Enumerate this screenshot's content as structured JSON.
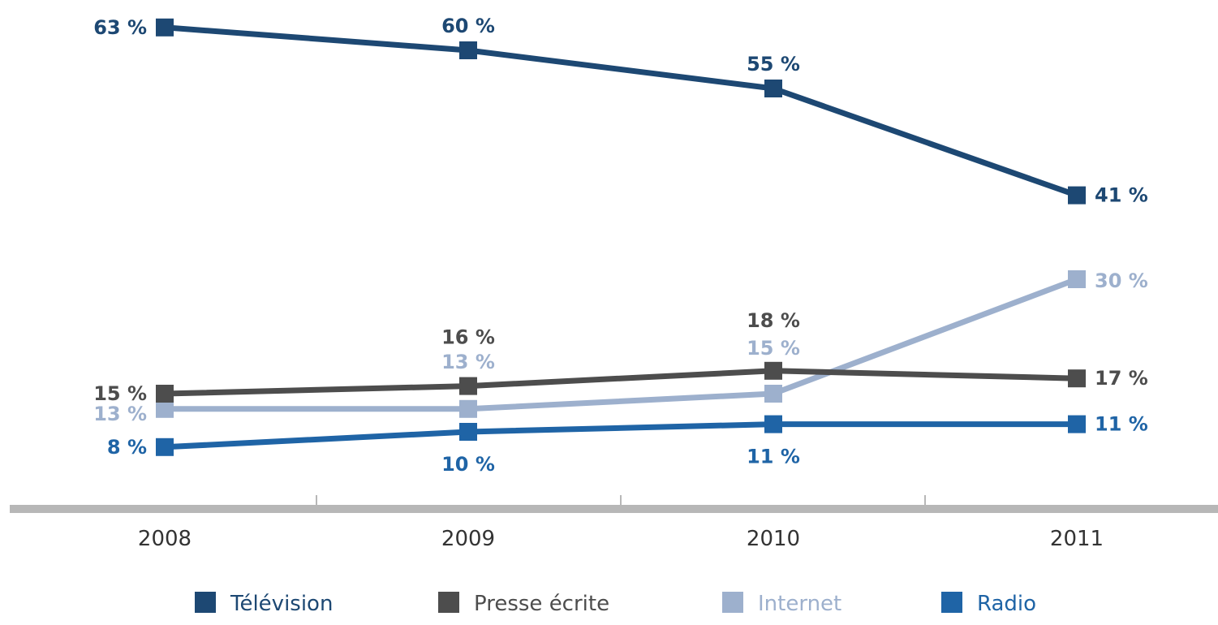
{
  "chart_data": {
    "type": "line",
    "x": [
      "2008",
      "2009",
      "2010",
      "2011"
    ],
    "ylim": [
      0,
      70
    ],
    "grid": false,
    "legend_position": "bottom",
    "series": [
      {
        "name": "Télévision",
        "color": "#1d4873",
        "values": [
          63,
          60,
          55,
          41
        ],
        "labels": [
          "63 %",
          "60 %",
          "55 %",
          "41 %"
        ]
      },
      {
        "name": "Presse écrite",
        "color": "#4d4d4d",
        "values": [
          15,
          16,
          18,
          17
        ],
        "labels": [
          "15 %",
          "16 %",
          "18 %",
          "17 %"
        ]
      },
      {
        "name": "Internet",
        "color": "#9db0cd",
        "values": [
          13,
          13,
          15,
          30
        ],
        "labels": [
          "13 %",
          "13 %",
          "15 %",
          "30 %"
        ]
      },
      {
        "name": "Radio",
        "color": "#1f64a6",
        "values": [
          8,
          10,
          11,
          11
        ],
        "labels": [
          "8 %",
          "10 %",
          "11 %",
          "11 %"
        ]
      }
    ]
  }
}
